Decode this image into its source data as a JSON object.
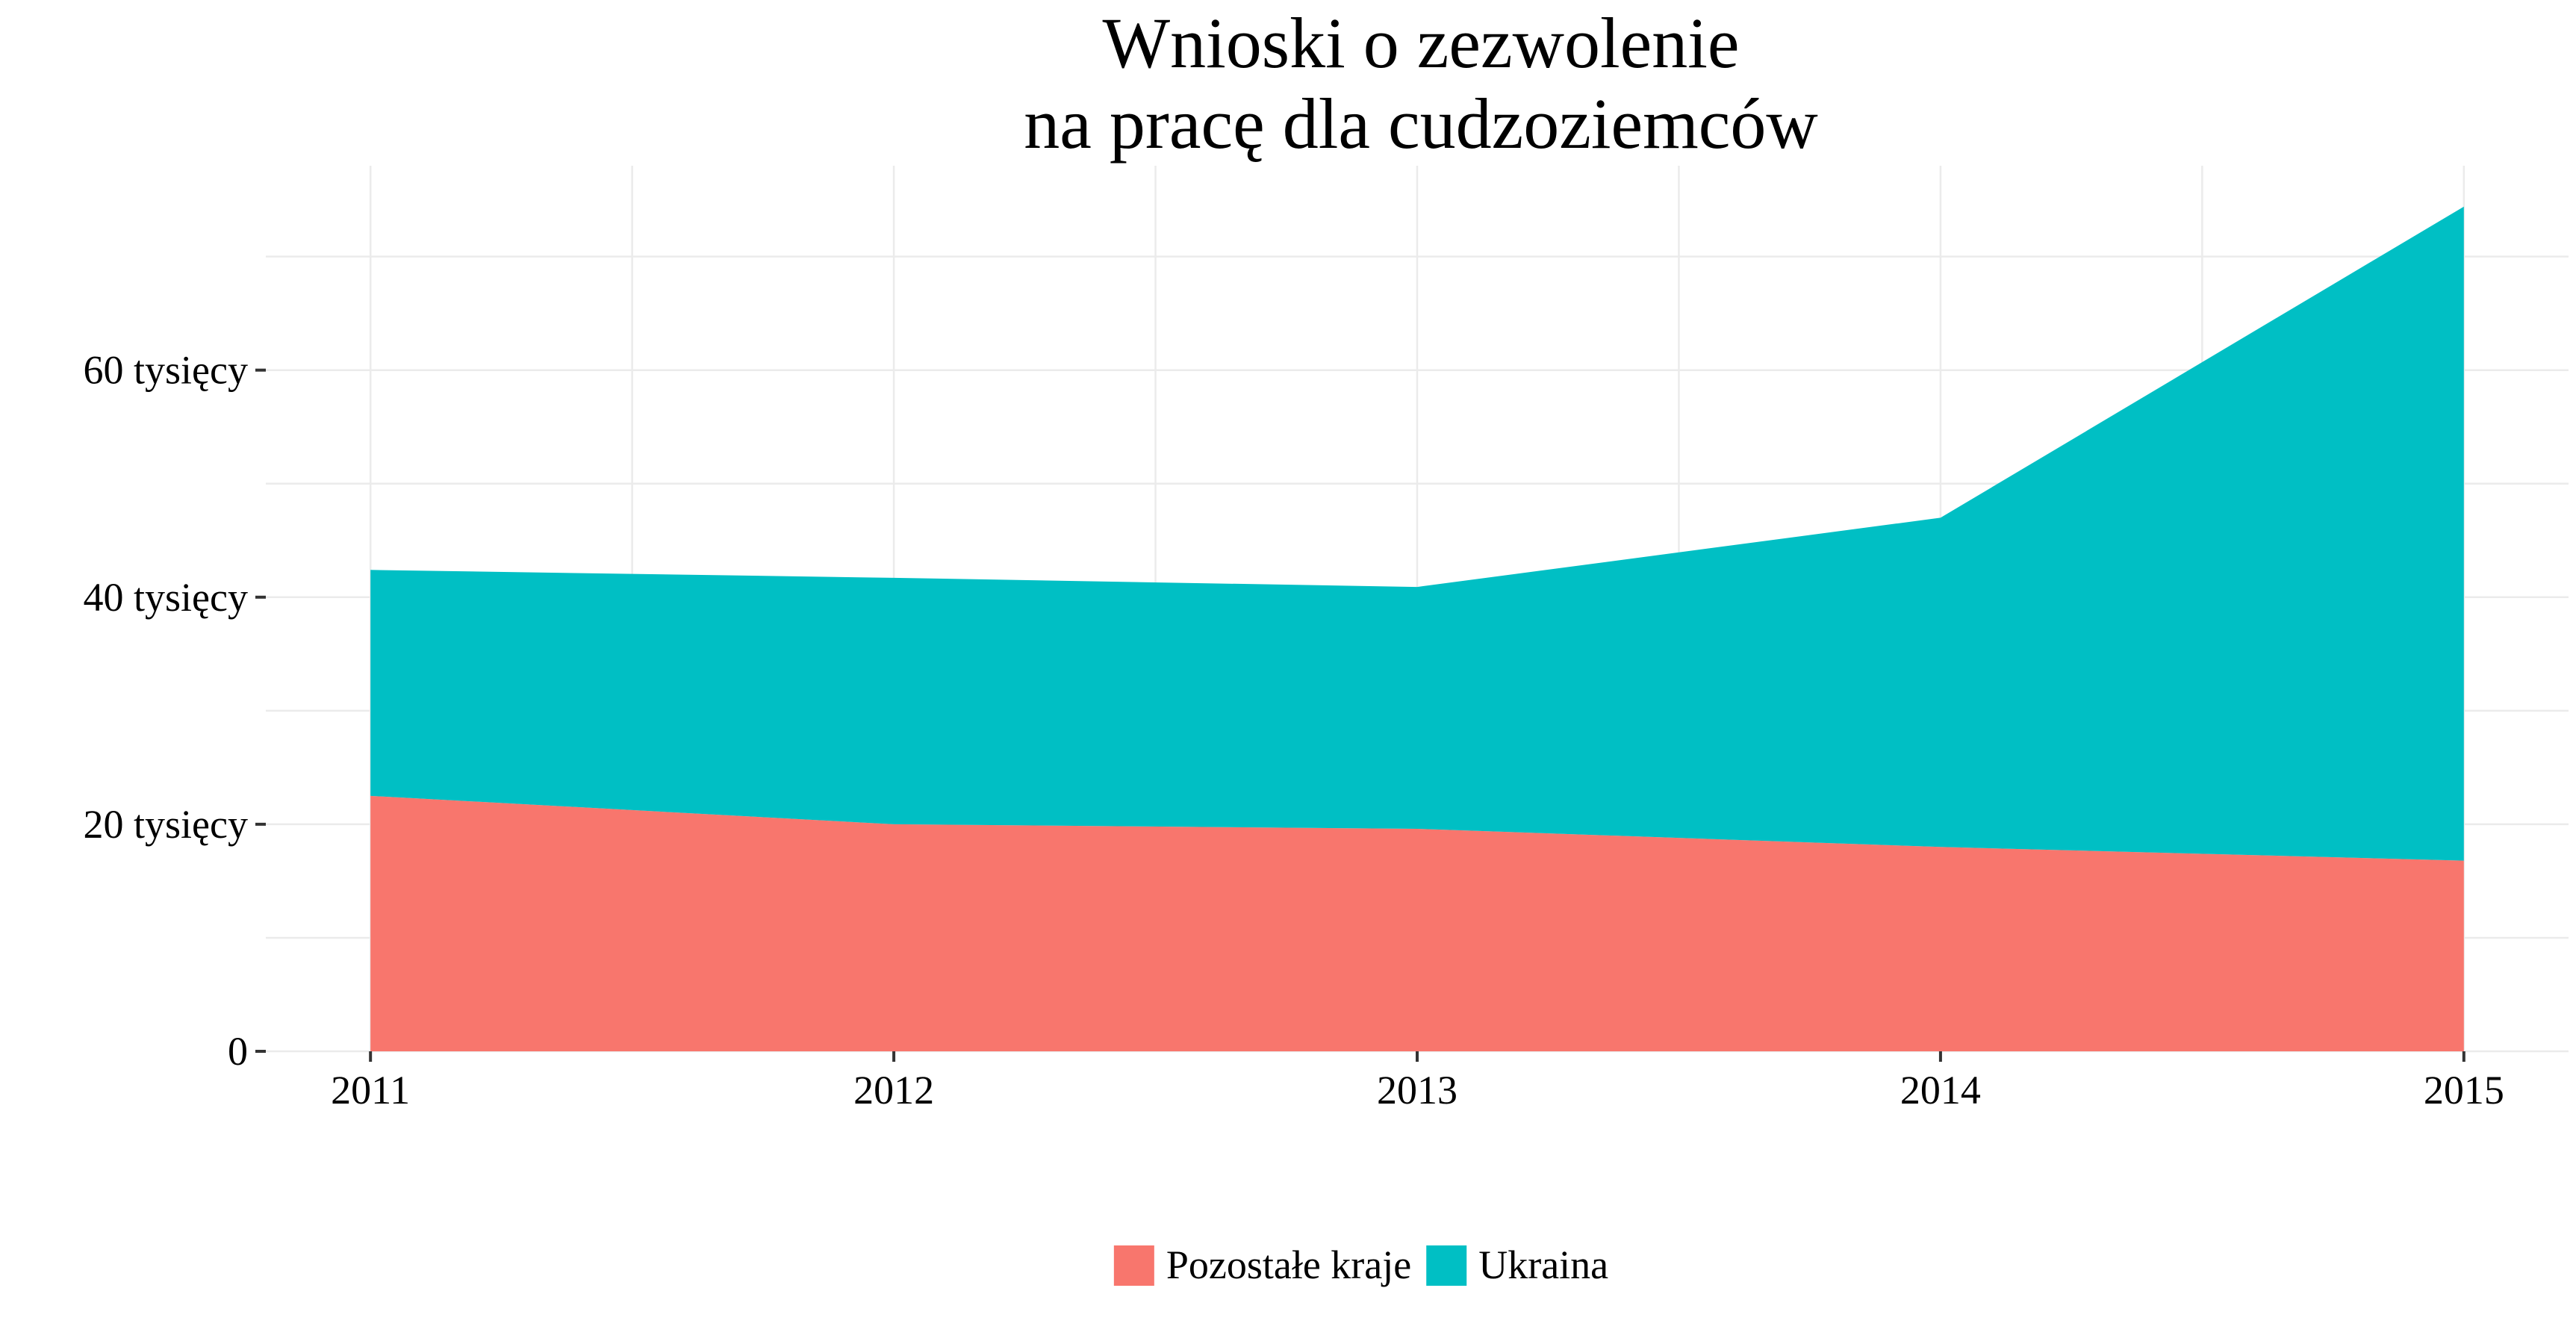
{
  "chart_data": {
    "type": "area",
    "stacked": true,
    "title_lines": [
      "Wnioski o zezwolenie",
      "na pracę dla cudzoziemców"
    ],
    "x": [
      2011,
      2012,
      2013,
      2014,
      2015
    ],
    "x_tick_labels": [
      "2011",
      "2012",
      "2013",
      "2014",
      "2015"
    ],
    "xlim": [
      2010.8,
      2015.2
    ],
    "y_ticks": [
      0,
      20000,
      40000,
      60000
    ],
    "y_tick_labels": [
      "0",
      "20 tysięcy",
      "40 tysięcy",
      "60 tysięcy"
    ],
    "ylim": [
      0,
      78000
    ],
    "xlabel": "",
    "ylabel": "",
    "grid": true,
    "legend_position": "bottom",
    "series": [
      {
        "name": "Pozostałe kraje",
        "color": "#f8766d",
        "values": [
          22500,
          20000,
          19600,
          18000,
          16800
        ]
      },
      {
        "name": "Ukraina",
        "color": "#00bfc4",
        "values": [
          19900,
          21700,
          21300,
          29000,
          57600
        ]
      }
    ]
  }
}
